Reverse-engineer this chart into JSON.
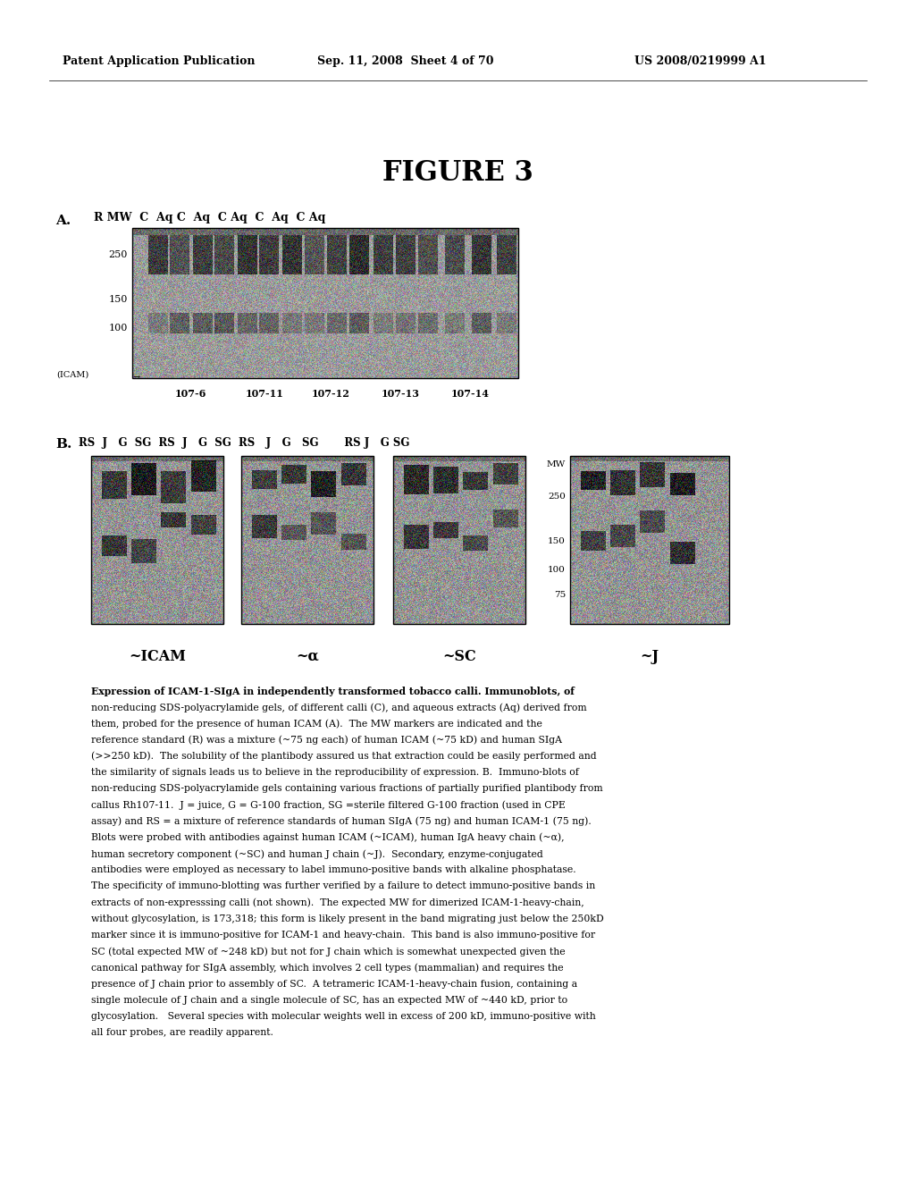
{
  "page_header_left": "Patent Application Publication",
  "page_header_center": "Sep. 11, 2008  Sheet 4 of 70",
  "page_header_right": "US 2008/0219999 A1",
  "figure_title": "FIGURE 3",
  "panel_a_label": "A.",
  "panel_a_header": "R MW  C  Aq C  Aq  C Aq  C  Aq  C Aq",
  "panel_a_markers": [
    "250",
    "150",
    "100"
  ],
  "panel_a_bottom_labels": [
    "107-6",
    "107-11",
    "107-12",
    "107-13",
    "107-14"
  ],
  "panel_a_icam_label": "(ICAM)",
  "panel_b_label": "B.",
  "panel_b_header": "RS  J   G  SG  RS  J   G  SG  RS   J   G   SG       RS J   G SG",
  "panel_b_markers": [
    "MW",
    "250",
    "150",
    "100",
    "75"
  ],
  "panel_b_bottom_labels": [
    "~ICAM",
    "~α",
    "~SC",
    "~J"
  ],
  "caption_lines": [
    "Expression of ICAM-1-SIgA in independently transformed tobacco calli. Immunoblots, of",
    "non-reducing SDS-polyacrylamide gels, of different calli (C), and aqueous extracts (Aq) derived from",
    "them, probed for the presence of human ICAM (A).  The MW markers are indicated and the",
    "reference standard (R) was a mixture (~75 ng each) of human ICAM (~75 kD) and human SIgA",
    "(>>250 kD).  The solubility of the plantibody assured us that extraction could be easily performed and",
    "the similarity of signals leads us to believe in the reproducibility of expression. B.  Immuno-blots of",
    "non-reducing SDS-polyacrylamide gels containing various fractions of partially purified plantibody from",
    "callus Rh107-11.  J = juice, G = G-100 fraction, SG =sterile filtered G-100 fraction (used in CPE",
    "assay) and RS = a mixture of reference standards of human SIgA (75 ng) and human ICAM-1 (75 ng).",
    "Blots were probed with antibodies against human ICAM (~ICAM), human IgA heavy chain (~α),",
    "human secretory component (~SC) and human J chain (~J).  Secondary, enzyme-conjugated",
    "antibodies were employed as necessary to label immuno-positive bands with alkaline phosphatase.",
    "The specificity of immuno-blotting was further verified by a failure to detect immuno-positive bands in",
    "extracts of non-expresssing calli (not shown).  The expected MW for dimerized ICAM-1-heavy-chain,",
    "without glycosylation, is 173,318; this form is likely present in the band migrating just below the 250kD",
    "marker since it is immuno-positive for ICAM-1 and heavy-chain.  This band is also immuno-positive for",
    "SC (total expected MW of ~248 kD) but not for J chain which is somewhat unexpected given the",
    "canonical pathway for SIgA assembly, which involves 2 cell types (mammalian) and requires the",
    "presence of J chain prior to assembly of SC.  A tetrameric ICAM-1-heavy-chain fusion, containing a",
    "single molecule of J chain and a single molecule of SC, has an expected MW of ~440 kD, prior to",
    "glycosylation.   Several species with molecular weights well in excess of 200 kD, immuno-positive with",
    "all four probes, are readily apparent."
  ],
  "bg_color": "#ffffff",
  "text_color": "#000000"
}
